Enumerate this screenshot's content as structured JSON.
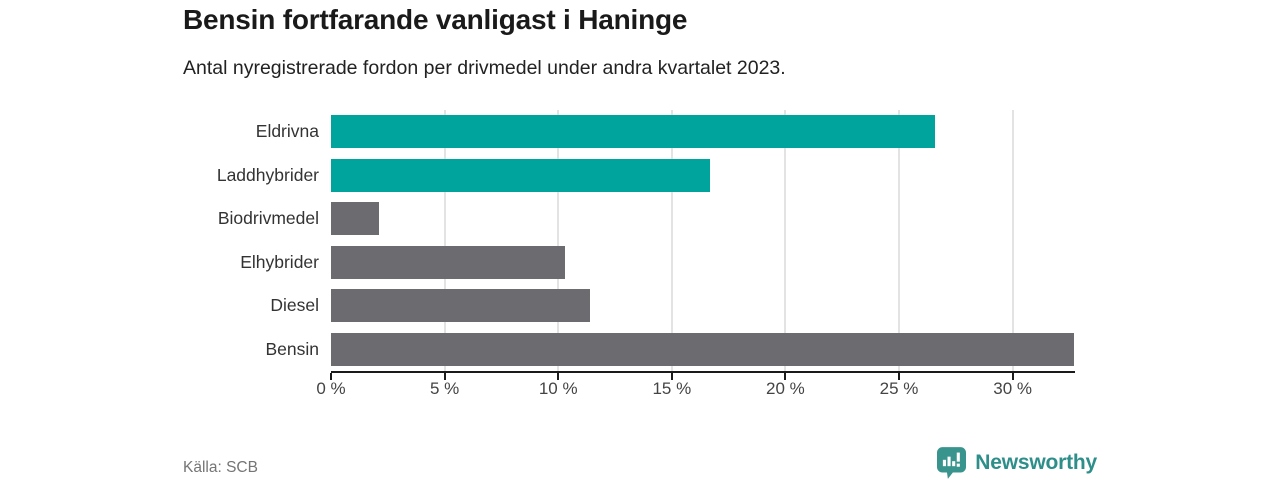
{
  "header": {
    "title": "Bensin fortfarande vanligast i Haninge",
    "subtitle": "Antal nyregistrerade fordon per drivmedel under andra kvartalet 2023."
  },
  "chart_data": {
    "type": "bar",
    "orientation": "horizontal",
    "title": "Bensin fortfarande vanligast i Haninge",
    "subtitle": "Antal nyregistrerade fordon per drivmedel under andra kvartalet 2023.",
    "categories": [
      "Eldrivna",
      "Laddhybrider",
      "Biodrivmedel",
      "Elhybrider",
      "Diesel",
      "Bensin"
    ],
    "values": [
      26.6,
      16.7,
      2.1,
      10.3,
      11.4,
      32.7
    ],
    "unit": "%",
    "xlabel": "",
    "ylabel": "",
    "xlim": [
      0,
      32.7
    ],
    "ticks": [
      0,
      5,
      10,
      15,
      20,
      25,
      30
    ],
    "tick_labels": [
      "0 %",
      "5 %",
      "10 %",
      "15 %",
      "20 %",
      "25 %",
      "30 %"
    ],
    "bar_colors": [
      "#00a49c",
      "#00a49c",
      "#6c6b70",
      "#6c6b70",
      "#6c6b70",
      "#6c6b70"
    ],
    "grid": true,
    "legend": "none"
  },
  "footer": {
    "source": "Källa: SCB",
    "brand": "Newsworthy"
  },
  "colors": {
    "accent_teal": "#00a49c",
    "bar_gray": "#6c6b70",
    "brand_teal": "#2e8f8a",
    "logo_badge": "#3a948e",
    "gridline": "#e3e3e3",
    "axis": "#1a1a1a",
    "text_muted": "#757575"
  }
}
